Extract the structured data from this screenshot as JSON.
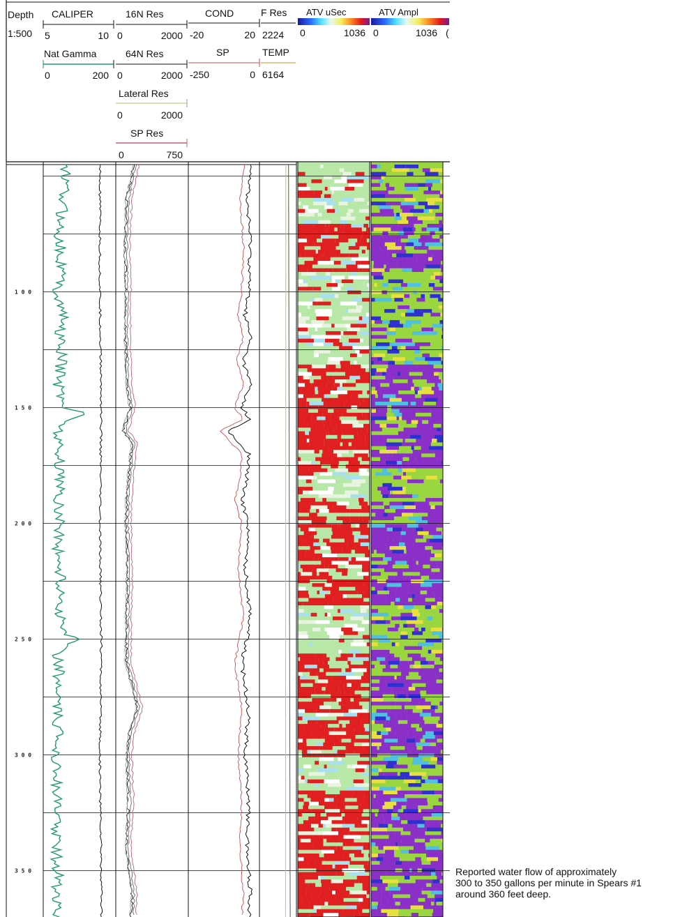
{
  "header": {
    "depth_label": "Depth",
    "scale_label": "1:500",
    "tracks": [
      {
        "name": "CALIPER",
        "min": "5",
        "max": "10",
        "color": "#111111"
      },
      {
        "name": "16N Res",
        "min": "0",
        "max": "2000",
        "color": "#111111"
      },
      {
        "name": "COND",
        "min": "-20",
        "max": "20",
        "color": "#111111"
      },
      {
        "name": "F Res",
        "max": "2224",
        "color": "#111111"
      },
      {
        "name": "ATV uSec",
        "min": "0",
        "max": "1036"
      },
      {
        "name": "ATV Ampl",
        "min": "0",
        "max": "1036",
        "extra": "("
      },
      {
        "name": "Nat Gamma",
        "min": "0",
        "max": "200",
        "color": "#1f9a6e"
      },
      {
        "name": "64N Res",
        "min": "0",
        "max": "2000",
        "color": "#111111"
      },
      {
        "name": "SP",
        "min": "-250",
        "max": "0",
        "color": "#c05050"
      },
      {
        "name": "TEMP",
        "max": "6164",
        "color": "#d9b96a"
      },
      {
        "name": "Lateral Res",
        "min": "0",
        "max": "2000",
        "color": "#d9d39a"
      },
      {
        "name": "SP Res",
        "min": "0",
        "max": "750",
        "color": "#c06070"
      }
    ]
  },
  "depth_ticks": [
    "1 0 0",
    "1 5 0",
    "2 0 0",
    "2 5 0",
    "3 0 0",
    "3 5 0"
  ],
  "annotation": {
    "line1": "Reported water flow of approximately",
    "line2": "300 to 350 gallons per minute in Spears #1",
    "line3": "around 360 feet deep."
  },
  "colors": {
    "gamma": "#1f9a6e",
    "sp": "#c05050",
    "temp": "#d9b96a",
    "atv_low": "#e02020",
    "atv_mid": "#b8e8a8",
    "amp_low": "#8b2fc9",
    "amp_mid": "#9ad640"
  },
  "chart_data": {
    "type": "line",
    "title": "",
    "xlabel": "",
    "ylabel": "Depth",
    "depth_range": [
      45,
      370
    ],
    "scale": "1:500",
    "grid": true,
    "legend": "top",
    "series": [
      {
        "name": "Nat Gamma",
        "unit_range": [
          0,
          200
        ],
        "depth": [
          45,
          60,
          75,
          90,
          100,
          110,
          120,
          130,
          140,
          150,
          152,
          155,
          160,
          170,
          180,
          190,
          200,
          210,
          220,
          230,
          240,
          248,
          250,
          252,
          256,
          260,
          270,
          280,
          290,
          300,
          310,
          320,
          330,
          340,
          350,
          360,
          370
        ],
        "values": [
          60,
          55,
          45,
          52,
          40,
          55,
          45,
          50,
          42,
          60,
          120,
          70,
          45,
          40,
          50,
          42,
          48,
          40,
          45,
          50,
          45,
          60,
          115,
          60,
          40,
          45,
          40,
          35,
          40,
          38,
          40,
          35,
          38,
          35,
          40,
          38,
          35
        ]
      },
      {
        "name": "CALIPER",
        "unit_range": [
          5,
          10
        ],
        "depth": [
          45,
          100,
          150,
          200,
          250,
          300,
          350,
          370
        ],
        "values": [
          8.9,
          8.9,
          9.0,
          8.9,
          9.0,
          8.9,
          9.0,
          9.0
        ]
      },
      {
        "name": "64N Res",
        "unit_range": [
          0,
          2000
        ],
        "depth": [
          45,
          60,
          80,
          100,
          120,
          140,
          150,
          160,
          165,
          180,
          190,
          200,
          220,
          240,
          260,
          280,
          290,
          300,
          320,
          340,
          360,
          370
        ],
        "values": [
          500,
          300,
          250,
          280,
          260,
          300,
          400,
          200,
          450,
          350,
          300,
          280,
          320,
          300,
          280,
          600,
          380,
          300,
          350,
          280,
          450,
          420
        ]
      },
      {
        "name": "COND",
        "unit_range": [
          -20,
          20
        ],
        "depth": [
          45,
          60,
          80,
          100,
          110,
          120,
          130,
          140,
          150,
          155,
          160,
          170,
          180,
          190,
          200,
          220,
          240,
          250,
          260,
          280,
          300,
          320,
          340,
          360,
          370
        ],
        "values": [
          16,
          13,
          15,
          14,
          12,
          15,
          11,
          15,
          10,
          15,
          2,
          14,
          13,
          10,
          14,
          12,
          15,
          13,
          10,
          14,
          12,
          14,
          13,
          15,
          14
        ]
      },
      {
        "name": "F Res",
        "unit_range": [
          0,
          2224
        ],
        "depth": [
          45,
          370
        ],
        "values": [
          1750,
          1850
        ]
      },
      {
        "name": "TEMP",
        "unit_range": [
          0,
          6164
        ],
        "depth": [
          45,
          370
        ],
        "values": [
          4400,
          4350
        ]
      }
    ],
    "images": [
      {
        "name": "ATV uSec",
        "scale": [
          0,
          1036
        ],
        "dominant_low_intervals": [
          [
            70,
            90
          ],
          [
            130,
            175
          ],
          [
            190,
            235
          ],
          [
            255,
            300
          ],
          [
            315,
            370
          ]
        ]
      },
      {
        "name": "ATV Ampl",
        "scale": [
          0,
          1036
        ],
        "dominant_low_intervals": [
          [
            70,
            90
          ],
          [
            130,
            175
          ],
          [
            190,
            235
          ],
          [
            255,
            300
          ],
          [
            315,
            370
          ]
        ]
      }
    ]
  }
}
